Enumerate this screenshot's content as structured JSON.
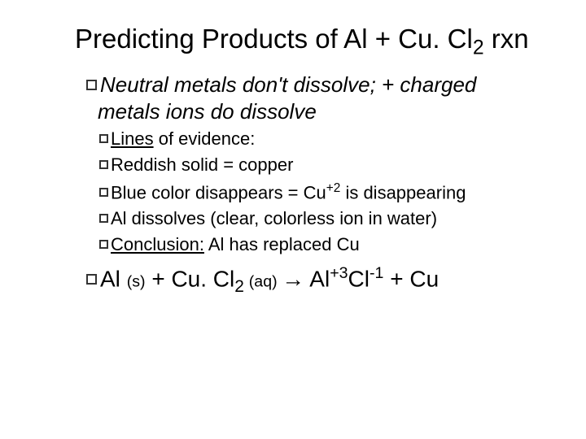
{
  "colors": {
    "background": "#ffffff",
    "text": "#000000",
    "bullet_border": "#333333"
  },
  "typography": {
    "title_fontsize": 33,
    "level1_fontsize": 26,
    "level2_fontsize": 22,
    "equation_fontsize": 28,
    "title_italic": false,
    "level1_italic": true
  },
  "title_parts": {
    "pre": "Predicting Products of Al + Cu. Cl",
    "sub": "2",
    "post": " rxn"
  },
  "line1": {
    "a": "Neutral metals don't dissolve;  + charged metals ions do dissolve"
  },
  "line2": {
    "label": "Lines",
    "rest": " of evidence:"
  },
  "line3": {
    "a": "Reddish solid = copper"
  },
  "line4": {
    "a": "Blue color disappears = Cu",
    "sup": "+2",
    "b": " is disappearing"
  },
  "line5": {
    "a": "Al dissolves (clear, colorless ion in water)"
  },
  "line6": {
    "label": "Conclusion:",
    "rest": "   Al has replaced Cu"
  },
  "eq": {
    "a": "Al ",
    "s": "(s)",
    "b": " + Cu. Cl",
    "sub2a": "2 ",
    "aq": "(aq) ",
    "arrow": "→ Al",
    "sup3": "+3",
    "c": "Cl",
    "supn1": "-1",
    "d": " + Cu"
  }
}
